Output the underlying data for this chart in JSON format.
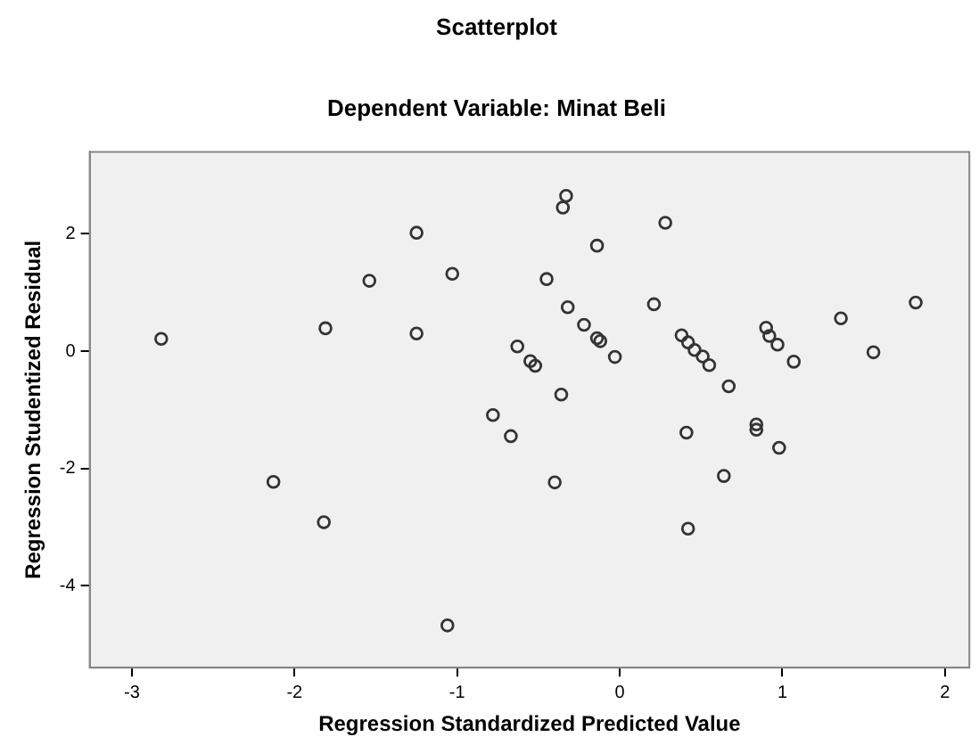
{
  "chart_data": {
    "type": "scatter",
    "title": "Scatterplot",
    "subtitle": "Dependent Variable: Minat Beli",
    "xlabel": "Regression Standardized Predicted Value",
    "ylabel": "Regression Studentized Residual",
    "series": [
      {
        "color": "#333333",
        "x": [
          -2.82,
          -2.13,
          -1.82,
          -1.81,
          -1.54,
          -1.25,
          -1.25,
          -1.03,
          -1.06,
          -0.78,
          -0.67,
          -0.63,
          -0.33,
          -0.35,
          0.28,
          -0.14,
          -0.45,
          -0.32,
          0.21,
          -0.22,
          -0.14,
          -0.12,
          -0.03,
          -0.55,
          -0.52,
          -0.36,
          -0.4,
          0.38,
          0.42,
          0.46,
          0.51,
          0.55,
          0.67,
          0.41,
          0.64,
          0.42,
          0.9,
          0.92,
          0.97,
          1.07,
          0.84,
          0.84,
          0.98,
          1.36,
          1.56,
          1.82
        ],
        "values": [
          0.21,
          -2.23,
          -2.92,
          0.39,
          1.2,
          2.02,
          0.3,
          1.32,
          -4.68,
          -1.09,
          -1.45,
          0.08,
          2.65,
          2.45,
          2.19,
          1.8,
          1.23,
          0.75,
          0.8,
          0.45,
          0.22,
          0.17,
          -0.1,
          -0.17,
          -0.25,
          -0.74,
          -2.24,
          0.27,
          0.15,
          0.02,
          -0.09,
          -0.24,
          -0.6,
          -1.39,
          -2.13,
          -3.03,
          0.4,
          0.26,
          0.11,
          -0.18,
          -1.25,
          -1.34,
          -1.65,
          0.56,
          -0.02,
          0.83
        ]
      }
    ],
    "xlim": [
      -3.26,
      2.15
    ],
    "xticks": [
      -3,
      -2,
      -1,
      0,
      1,
      2
    ],
    "ylim": [
      -5.4,
      3.4
    ],
    "yticks": [
      -4,
      -2,
      0,
      2
    ],
    "grid": false,
    "legend": false,
    "marker": "circle"
  }
}
